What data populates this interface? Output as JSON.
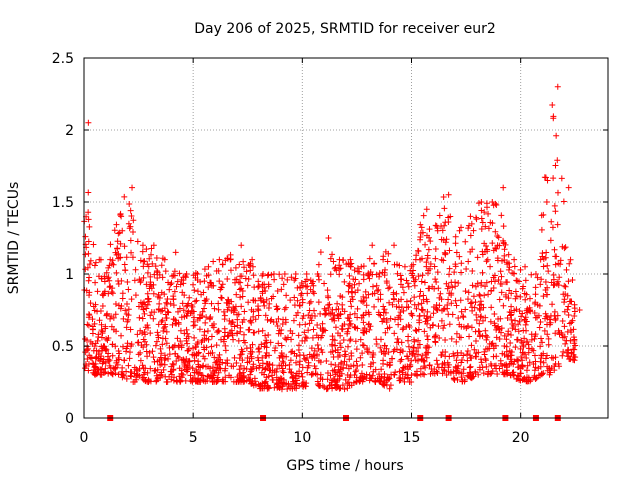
{
  "chart_data": {
    "type": "scatter",
    "title": "Day 206 of 2025, SRMTID for receiver eur2",
    "xlabel": "GPS time / hours",
    "ylabel": "SRMTID / TECUs",
    "xlim": [
      0,
      24
    ],
    "ylim": [
      0,
      2.5
    ],
    "x_ticks": [
      "0",
      "5",
      "10",
      "15",
      "20"
    ],
    "y_ticks": [
      "0",
      "0.5",
      "1",
      "1.5",
      "2",
      "2.5"
    ],
    "grid": true,
    "marker": "plus",
    "color": "#ff0000",
    "gap_markers_x": [
      1.2,
      8.2,
      12.0,
      15.4,
      16.7,
      19.3,
      20.7,
      21.7
    ],
    "envelope": {
      "hours": [
        0,
        0.5,
        1,
        1.5,
        2,
        2.5,
        3,
        3.5,
        4,
        4.5,
        5,
        5.5,
        6,
        6.5,
        7,
        7.5,
        8,
        8.5,
        9,
        9.5,
        10,
        10.5,
        11,
        11.5,
        12,
        12.5,
        13,
        13.5,
        14,
        14.5,
        15,
        15.5,
        16,
        16.5,
        17,
        17.5,
        18,
        18.5,
        19,
        19.5,
        20,
        20.5,
        21,
        21.5,
        22,
        22.5
      ],
      "min": [
        0.35,
        0.3,
        0.3,
        0.3,
        0.25,
        0.25,
        0.25,
        0.25,
        0.25,
        0.25,
        0.25,
        0.25,
        0.25,
        0.25,
        0.25,
        0.25,
        0.2,
        0.2,
        0.2,
        0.2,
        0.2,
        0.25,
        0.2,
        0.2,
        0.2,
        0.25,
        0.25,
        0.25,
        0.2,
        0.25,
        0.25,
        0.3,
        0.3,
        0.3,
        0.25,
        0.25,
        0.3,
        0.3,
        0.3,
        0.3,
        0.25,
        0.25,
        0.3,
        0.3,
        0.4,
        0.4
      ],
      "max": [
        2.05,
        1.1,
        1.1,
        1.4,
        1.6,
        1.2,
        1.2,
        1.1,
        1.15,
        1.0,
        1.0,
        1.05,
        1.1,
        1.1,
        1.2,
        1.1,
        1.0,
        1.0,
        1.0,
        1.0,
        1.0,
        1.0,
        1.25,
        1.1,
        1.1,
        1.05,
        1.2,
        1.1,
        1.2,
        1.05,
        1.1,
        1.45,
        1.3,
        1.55,
        1.3,
        1.4,
        1.5,
        1.5,
        1.6,
        1.1,
        1.05,
        1.0,
        1.5,
        2.3,
        1.6,
        0.75
      ]
    }
  }
}
